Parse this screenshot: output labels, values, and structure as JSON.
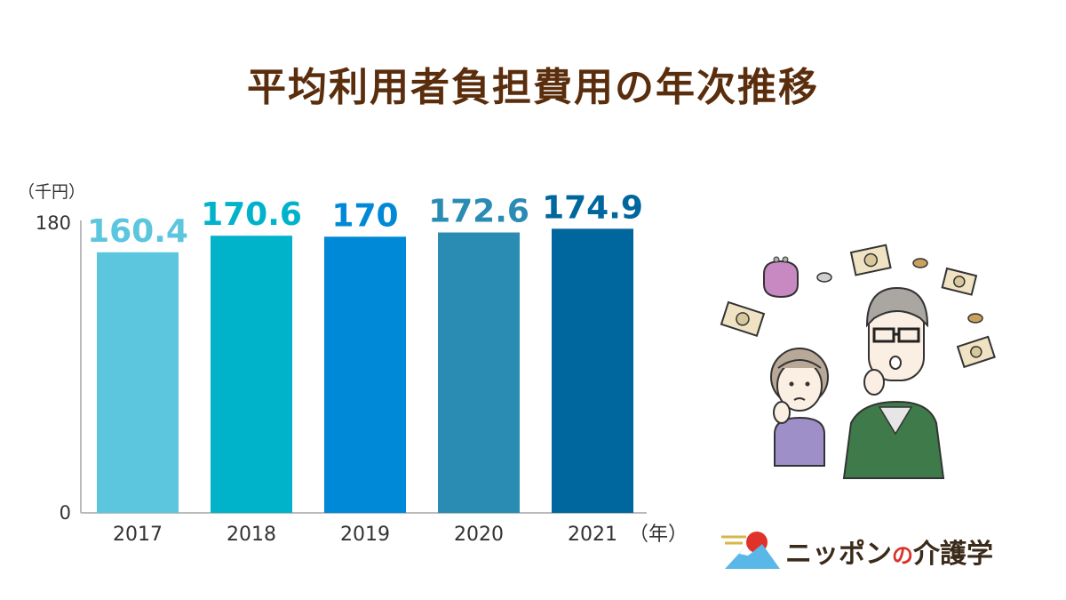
{
  "title": "平均利用者負担費用の年次推移",
  "chart_data": {
    "type": "bar",
    "title": "平均利用者負担費用の年次推移",
    "y_unit": "（千円）",
    "x_unit": "（年）",
    "categories": [
      "2017",
      "2018",
      "2019",
      "2020",
      "2021"
    ],
    "values": [
      160.4,
      170.6,
      170,
      172.6,
      174.9
    ],
    "value_labels": [
      "160.4",
      "170.6",
      "170",
      "172.6",
      "174.9"
    ],
    "bar_colors": [
      "#5bc6dd",
      "#00b3cb",
      "#0089d6",
      "#2a8bb3",
      "#00669e"
    ],
    "ylim": [
      0,
      180
    ],
    "yticks": [
      "0",
      "180"
    ],
    "grid": false,
    "legend": "none"
  },
  "logo": {
    "text_main": "ニッポン",
    "text_no": "の",
    "text_tail": "介護学"
  },
  "colors": {
    "title": "#5a2d0c",
    "axis": "#bbbbbb",
    "logo_sun": "#e0322a",
    "logo_mountain": "#59b8e8"
  }
}
